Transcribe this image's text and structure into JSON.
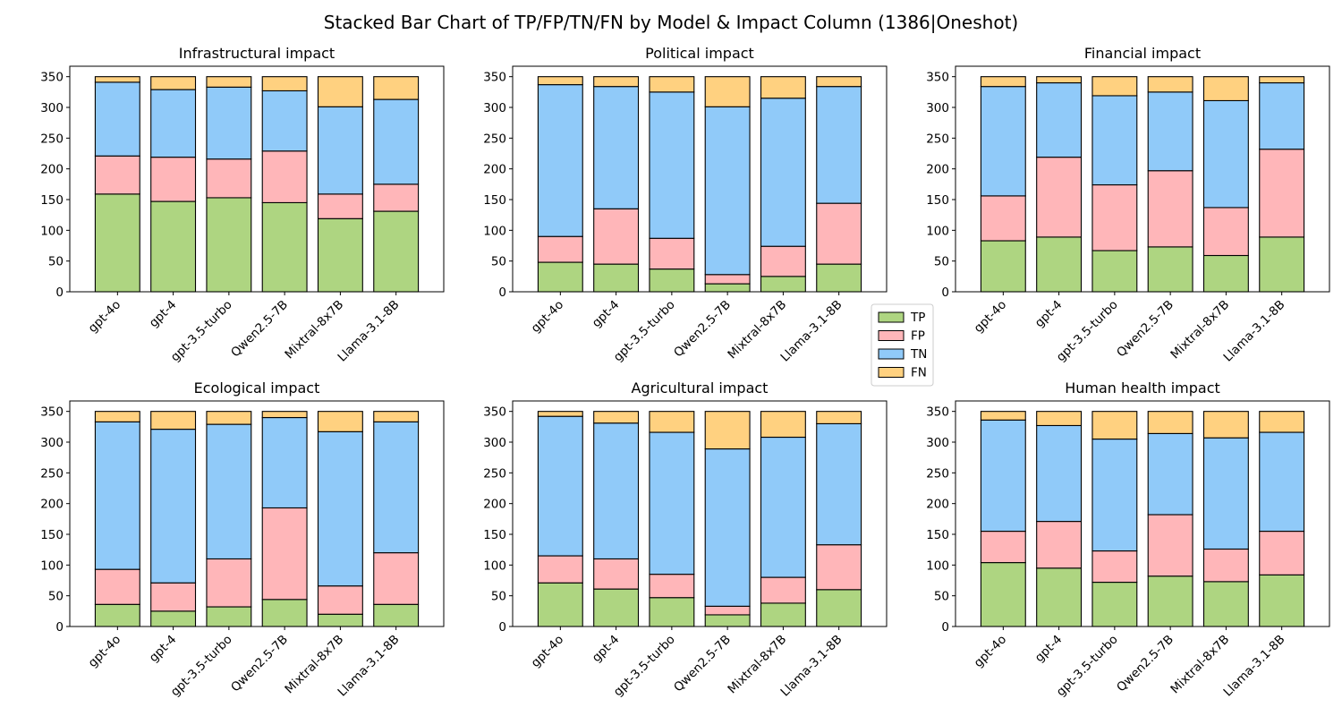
{
  "figure": {
    "title": "Stacked Bar Chart of TP/FP/TN/FN by Model & Impact Column (1386|Oneshot)"
  },
  "legend": {
    "placement": "center-right",
    "items": [
      {
        "label": "TP",
        "color": "#aed581"
      },
      {
        "label": "FP",
        "color": "#ffb6b9"
      },
      {
        "label": "TN",
        "color": "#90caf9"
      },
      {
        "label": "FN",
        "color": "#ffd180"
      }
    ]
  },
  "chart_data": [
    {
      "type": "bar",
      "stacked": true,
      "title": "Infrastructural impact",
      "categories": [
        "gpt-4o",
        "gpt-4",
        "gpt-3.5-turbo",
        "Qwen2.5-7B",
        "Mixtral-8x7B",
        "Llama-3.1-8B"
      ],
      "yticks": [
        0,
        50,
        100,
        150,
        200,
        250,
        300,
        350
      ],
      "ylim": [
        0,
        367
      ],
      "series": [
        {
          "name": "TP",
          "values": [
            159,
            147,
            153,
            145,
            119,
            131
          ]
        },
        {
          "name": "FP",
          "values": [
            62,
            72,
            63,
            84,
            40,
            44
          ]
        },
        {
          "name": "TN",
          "values": [
            120,
            110,
            117,
            98,
            142,
            138
          ]
        },
        {
          "name": "FN",
          "values": [
            9,
            21,
            17,
            23,
            49,
            37
          ]
        }
      ]
    },
    {
      "type": "bar",
      "stacked": true,
      "title": "Political impact",
      "categories": [
        "gpt-4o",
        "gpt-4",
        "gpt-3.5-turbo",
        "Qwen2.5-7B",
        "Mixtral-8x7B",
        "Llama-3.1-8B"
      ],
      "yticks": [
        0,
        50,
        100,
        150,
        200,
        250,
        300,
        350
      ],
      "ylim": [
        0,
        367
      ],
      "series": [
        {
          "name": "TP",
          "values": [
            48,
            45,
            37,
            13,
            25,
            45
          ]
        },
        {
          "name": "FP",
          "values": [
            42,
            90,
            50,
            15,
            49,
            99
          ]
        },
        {
          "name": "TN",
          "values": [
            247,
            199,
            238,
            273,
            241,
            190
          ]
        },
        {
          "name": "FN",
          "values": [
            13,
            16,
            25,
            49,
            35,
            16
          ]
        }
      ]
    },
    {
      "type": "bar",
      "stacked": true,
      "title": "Financial impact",
      "categories": [
        "gpt-4o",
        "gpt-4",
        "gpt-3.5-turbo",
        "Qwen2.5-7B",
        "Mixtral-8x7B",
        "Llama-3.1-8B"
      ],
      "yticks": [
        0,
        50,
        100,
        150,
        200,
        250,
        300,
        350
      ],
      "ylim": [
        0,
        367
      ],
      "series": [
        {
          "name": "TP",
          "values": [
            83,
            89,
            67,
            73,
            59,
            89
          ]
        },
        {
          "name": "FP",
          "values": [
            73,
            130,
            107,
            124,
            78,
            143
          ]
        },
        {
          "name": "TN",
          "values": [
            178,
            121,
            145,
            128,
            174,
            108
          ]
        },
        {
          "name": "FN",
          "values": [
            16,
            10,
            31,
            25,
            39,
            10
          ]
        }
      ]
    },
    {
      "type": "bar",
      "stacked": true,
      "title": "Ecological impact",
      "categories": [
        "gpt-4o",
        "gpt-4",
        "gpt-3.5-turbo",
        "Qwen2.5-7B",
        "Mixtral-8x7B",
        "Llama-3.1-8B"
      ],
      "yticks": [
        0,
        50,
        100,
        150,
        200,
        250,
        300,
        350
      ],
      "ylim": [
        0,
        367
      ],
      "series": [
        {
          "name": "TP",
          "values": [
            36,
            25,
            32,
            44,
            20,
            36
          ]
        },
        {
          "name": "FP",
          "values": [
            57,
            46,
            78,
            149,
            46,
            84
          ]
        },
        {
          "name": "TN",
          "values": [
            240,
            250,
            219,
            147,
            251,
            213
          ]
        },
        {
          "name": "FN",
          "values": [
            17,
            29,
            21,
            10,
            33,
            17
          ]
        }
      ]
    },
    {
      "type": "bar",
      "stacked": true,
      "title": "Agricultural impact",
      "categories": [
        "gpt-4o",
        "gpt-4",
        "gpt-3.5-turbo",
        "Qwen2.5-7B",
        "Mixtral-8x7B",
        "Llama-3.1-8B"
      ],
      "yticks": [
        0,
        50,
        100,
        150,
        200,
        250,
        300,
        350
      ],
      "ylim": [
        0,
        367
      ],
      "series": [
        {
          "name": "TP",
          "values": [
            71,
            61,
            47,
            19,
            38,
            60
          ]
        },
        {
          "name": "FP",
          "values": [
            44,
            49,
            38,
            14,
            42,
            73
          ]
        },
        {
          "name": "TN",
          "values": [
            227,
            221,
            231,
            256,
            228,
            197
          ]
        },
        {
          "name": "FN",
          "values": [
            8,
            19,
            34,
            61,
            42,
            20
          ]
        }
      ]
    },
    {
      "type": "bar",
      "stacked": true,
      "title": "Human health impact",
      "categories": [
        "gpt-4o",
        "gpt-4",
        "gpt-3.5-turbo",
        "Qwen2.5-7B",
        "Mixtral-8x7B",
        "Llama-3.1-8B"
      ],
      "yticks": [
        0,
        50,
        100,
        150,
        200,
        250,
        300,
        350
      ],
      "ylim": [
        0,
        367
      ],
      "series": [
        {
          "name": "TP",
          "values": [
            104,
            95,
            72,
            82,
            73,
            84
          ]
        },
        {
          "name": "FP",
          "values": [
            51,
            76,
            51,
            100,
            53,
            71
          ]
        },
        {
          "name": "TN",
          "values": [
            181,
            156,
            182,
            132,
            181,
            161
          ]
        },
        {
          "name": "FN",
          "values": [
            14,
            23,
            45,
            36,
            43,
            34
          ]
        }
      ]
    }
  ]
}
